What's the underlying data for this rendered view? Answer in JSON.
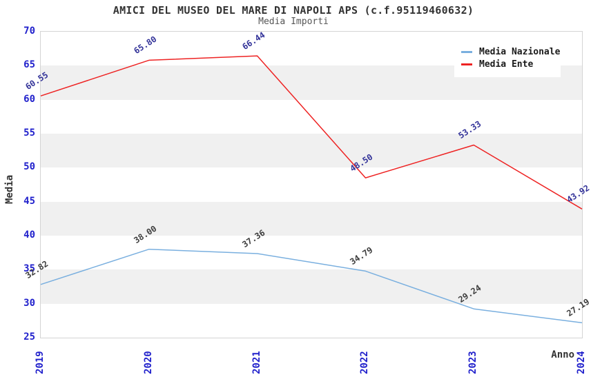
{
  "header": {
    "title": "AMICI DEL MUSEO DEL MARE DI NAPOLI APS (c.f.95119460632)",
    "subtitle": "Media Importi"
  },
  "legend": {
    "position": "top-right",
    "items": [
      {
        "label": "Media Nazionale",
        "color": "#79afdf"
      },
      {
        "label": "Media Ente",
        "color": "#ee2222"
      }
    ]
  },
  "axes": {
    "ylabel": "Media",
    "xlabel": "Anno",
    "tick_color": "#2222cc",
    "y_ticks": [
      70,
      65,
      60,
      55,
      50,
      45,
      40,
      35,
      30,
      25
    ],
    "x_ticks": [
      "2019",
      "2020",
      "2021",
      "2022",
      "2023",
      "2024"
    ]
  },
  "colors": {
    "background": "#ffffff",
    "band_gray": "#f0f0f0",
    "plot_border": "#d4d4d4",
    "title_text": "#333333",
    "subtitle_text": "#555555"
  },
  "chart_data": {
    "type": "line",
    "title": "AMICI DEL MUSEO DEL MARE DI NAPOLI APS (c.f.95119460632)",
    "subtitle": "Media Importi",
    "xlabel": "Anno",
    "ylabel": "Media",
    "ylim": [
      25,
      70
    ],
    "ytick_step": 5,
    "grid": "horizontal-alternating-bands",
    "legend_position": "top-right",
    "categories": [
      "2019",
      "2020",
      "2021",
      "2022",
      "2023",
      "2024"
    ],
    "series": [
      {
        "name": "Media Nazionale",
        "color": "#79afdf",
        "label_color": "#3d3d3d",
        "values": [
          32.82,
          38.0,
          37.36,
          34.79,
          29.24,
          27.19
        ]
      },
      {
        "name": "Media Ente",
        "color": "#ee2222",
        "label_color": "#333399",
        "values": [
          60.55,
          65.8,
          66.44,
          48.5,
          53.33,
          43.92
        ]
      }
    ]
  }
}
